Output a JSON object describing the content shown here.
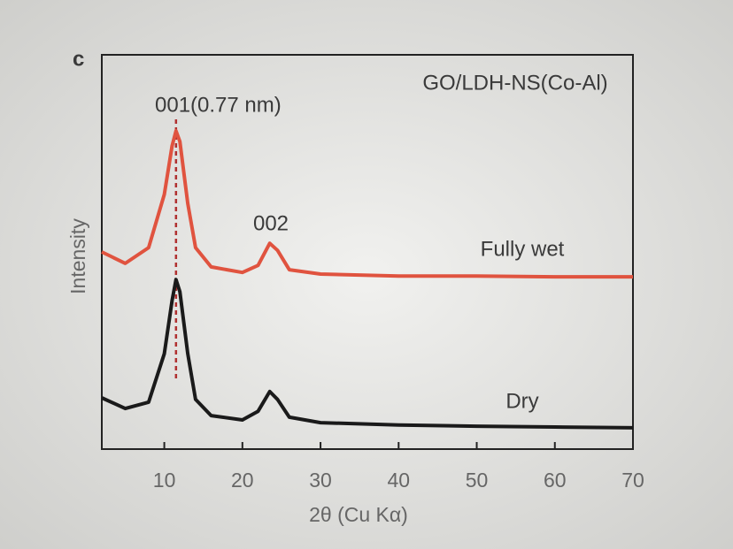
{
  "chart_data": {
    "type": "line",
    "panel_label": "c",
    "title": "GO/LDH-NS(Co-Al)",
    "x_label": "2θ (Cu Kα)",
    "y_label": "Intensity",
    "annotations": [
      "001(0.77 nm)",
      "002"
    ],
    "reference_line_x": 11.5,
    "x": [
      2,
      5,
      8,
      10,
      11,
      11.5,
      12,
      13,
      14,
      16,
      20,
      22,
      23.5,
      24.5,
      26,
      30,
      40,
      50,
      60,
      70
    ],
    "series": [
      {
        "name": "Fully wet",
        "color": "#e0533f",
        "values": [
          50.0,
          47.1,
          51.1,
          64.6,
          76.9,
          80.7,
          78.0,
          62.3,
          51.1,
          46.2,
          44.8,
          46.6,
          52.2,
          50.4,
          45.5,
          44.4,
          43.9,
          43.9,
          43.7,
          43.7
        ]
      },
      {
        "name": "Dry",
        "color": "#1a1a1a",
        "values": [
          13.0,
          10.3,
          11.9,
          24.2,
          37.7,
          43.0,
          39.9,
          24.2,
          12.6,
          8.5,
          7.4,
          9.6,
          14.6,
          12.6,
          8.1,
          6.7,
          6.1,
          5.8,
          5.6,
          5.4
        ]
      }
    ],
    "xlim": [
      2,
      70
    ],
    "xticks": [
      10,
      20,
      30,
      40,
      50,
      60,
      70
    ],
    "ylim": [
      0,
      100
    ]
  }
}
